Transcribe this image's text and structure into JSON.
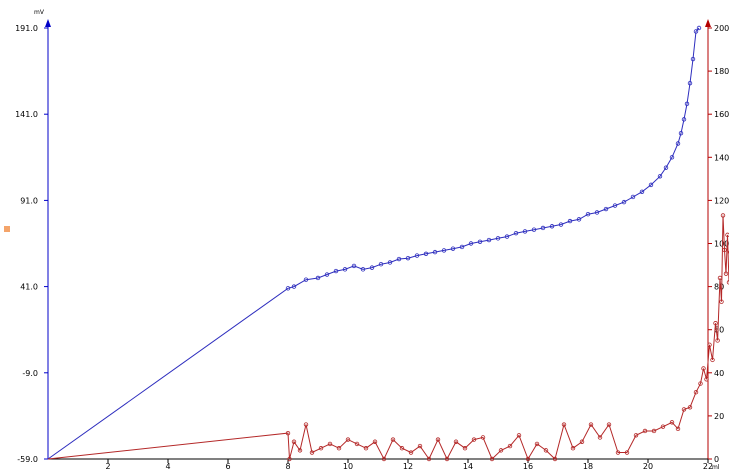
{
  "chart_data": {
    "type": "line",
    "y_left_unit": "mV",
    "x_unit": "ml",
    "y_left_ticks": [
      "191.0",
      "141.0",
      "91.0",
      "41.0",
      "-9.0",
      "-59.0"
    ],
    "y_left_range": [
      -59.0,
      191.0
    ],
    "y_right_ticks": [
      "200",
      "180",
      "160",
      "140",
      "120",
      "100",
      "80",
      "60",
      "40",
      "20",
      "0"
    ],
    "y_right_range": [
      0,
      200
    ],
    "x_ticks": [
      "2",
      "4",
      "6",
      "8",
      "10",
      "12",
      "14",
      "16",
      "18",
      "20",
      "22"
    ],
    "x_range": [
      0,
      22
    ],
    "grid": false,
    "colors": {
      "left_axis": "#0000c8",
      "right_axis": "#b40000",
      "mv_series": "#2d2dbe",
      "d_series": "#b42828",
      "marker": "#f4a46a"
    },
    "series": [
      {
        "axis": "left",
        "color": "#2d2dbe",
        "points": [
          [
            0.0,
            -59.0
          ],
          [
            8.0,
            40.0
          ],
          [
            8.2,
            41.0
          ],
          [
            8.6,
            45.0
          ],
          [
            9.0,
            46.0
          ],
          [
            9.3,
            48.0
          ],
          [
            9.6,
            50.0
          ],
          [
            9.9,
            51.0
          ],
          [
            10.2,
            53.0
          ],
          [
            10.5,
            51.0
          ],
          [
            10.8,
            52.0
          ],
          [
            11.1,
            54.0
          ],
          [
            11.4,
            55.0
          ],
          [
            11.7,
            57.0
          ],
          [
            12.0,
            57.5
          ],
          [
            12.3,
            59.0
          ],
          [
            12.6,
            60.0
          ],
          [
            12.9,
            61.0
          ],
          [
            13.2,
            62.0
          ],
          [
            13.5,
            63.0
          ],
          [
            13.8,
            64.0
          ],
          [
            14.1,
            66.0
          ],
          [
            14.4,
            67.0
          ],
          [
            14.7,
            68.0
          ],
          [
            15.0,
            69.0
          ],
          [
            15.3,
            70.0
          ],
          [
            15.6,
            72.0
          ],
          [
            15.9,
            73.0
          ],
          [
            16.2,
            74.0
          ],
          [
            16.5,
            75.0
          ],
          [
            16.8,
            76.0
          ],
          [
            17.1,
            77.0
          ],
          [
            17.4,
            79.0
          ],
          [
            17.7,
            80.0
          ],
          [
            18.0,
            83.0
          ],
          [
            18.3,
            84.0
          ],
          [
            18.6,
            86.0
          ],
          [
            18.9,
            88.0
          ],
          [
            19.2,
            90.0
          ],
          [
            19.5,
            93.0
          ],
          [
            19.8,
            96.0
          ],
          [
            20.1,
            100.0
          ],
          [
            20.4,
            105.0
          ],
          [
            20.6,
            110.0
          ],
          [
            20.8,
            116.0
          ],
          [
            21.0,
            124.0
          ],
          [
            21.1,
            130.0
          ],
          [
            21.2,
            138.0
          ],
          [
            21.3,
            147.0
          ],
          [
            21.4,
            159.0
          ],
          [
            21.5,
            173.0
          ],
          [
            21.6,
            189.0
          ],
          [
            21.7,
            191.0
          ]
        ]
      },
      {
        "axis": "right",
        "color": "#b42828",
        "points": [
          [
            0.0,
            0.0
          ],
          [
            8.0,
            12.0
          ],
          [
            8.05,
            0.0
          ],
          [
            8.2,
            8.0
          ],
          [
            8.4,
            4.0
          ],
          [
            8.6,
            16.0
          ],
          [
            8.8,
            3.0
          ],
          [
            9.1,
            5.0
          ],
          [
            9.4,
            7.0
          ],
          [
            9.7,
            5.0
          ],
          [
            10.0,
            9.0
          ],
          [
            10.3,
            7.0
          ],
          [
            10.6,
            5.0
          ],
          [
            10.9,
            8.0
          ],
          [
            11.2,
            0.0
          ],
          [
            11.5,
            9.0
          ],
          [
            11.8,
            5.0
          ],
          [
            12.1,
            3.0
          ],
          [
            12.4,
            6.0
          ],
          [
            12.7,
            0.0
          ],
          [
            13.0,
            9.0
          ],
          [
            13.3,
            0.0
          ],
          [
            13.6,
            8.0
          ],
          [
            13.9,
            5.0
          ],
          [
            14.2,
            9.0
          ],
          [
            14.5,
            10.0
          ],
          [
            14.8,
            0.0
          ],
          [
            15.1,
            4.0
          ],
          [
            15.4,
            6.0
          ],
          [
            15.7,
            11.0
          ],
          [
            16.0,
            0.0
          ],
          [
            16.3,
            7.0
          ],
          [
            16.6,
            4.0
          ],
          [
            16.9,
            0.0
          ],
          [
            17.2,
            16.0
          ],
          [
            17.5,
            5.0
          ],
          [
            17.8,
            8.0
          ],
          [
            18.1,
            16.0
          ],
          [
            18.4,
            10.0
          ],
          [
            18.7,
            16.0
          ],
          [
            19.0,
            3.0
          ],
          [
            19.3,
            3.0
          ],
          [
            19.6,
            11.0
          ],
          [
            19.9,
            13.0
          ],
          [
            20.2,
            13.0
          ],
          [
            20.5,
            15.0
          ],
          [
            20.8,
            17.0
          ],
          [
            21.0,
            14.0
          ],
          [
            21.2,
            23.0
          ],
          [
            21.4,
            24.0
          ],
          [
            21.6,
            31.0
          ],
          [
            21.75,
            35.0
          ],
          [
            21.85,
            42.0
          ],
          [
            21.95,
            37.0
          ],
          [
            22.05,
            53.0
          ],
          [
            22.15,
            46.0
          ],
          [
            22.25,
            63.0
          ],
          [
            22.32,
            55.0
          ],
          [
            22.4,
            84.0
          ],
          [
            22.45,
            73.0
          ],
          [
            22.5,
            113.0
          ],
          [
            22.55,
            97.0
          ],
          [
            22.6,
            86.0
          ],
          [
            22.65,
            104.0
          ],
          [
            22.7,
            82.0
          ],
          [
            22.75,
            96.0
          ],
          [
            22.8,
            66.0
          ]
        ]
      }
    ]
  }
}
